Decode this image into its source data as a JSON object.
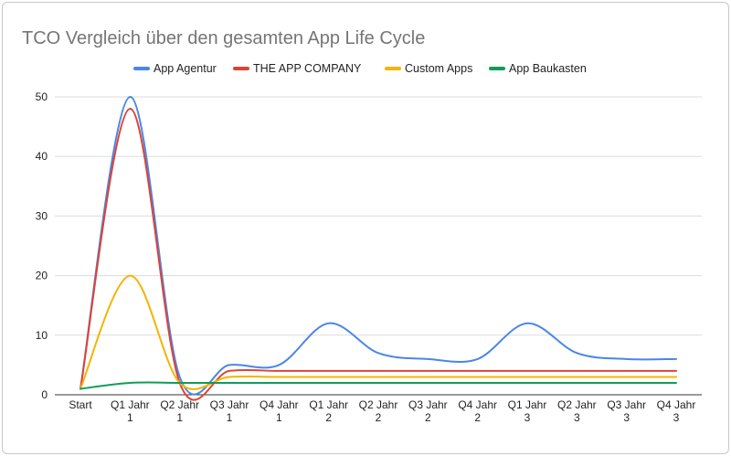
{
  "chart_data": {
    "type": "line",
    "title": "TCO Vergleich über den gesamten App Life Cycle",
    "xlabel": "",
    "ylabel": "",
    "ylim": [
      0,
      50
    ],
    "yticks": [
      0,
      10,
      20,
      30,
      40,
      50
    ],
    "grid": true,
    "smooth": true,
    "legend_position": "top",
    "categories": [
      [
        "Start"
      ],
      [
        "Q1 Jahr",
        "1"
      ],
      [
        "Q2 Jahr",
        "1"
      ],
      [
        "Q3 Jahr",
        "1"
      ],
      [
        "Q4 Jahr",
        "1"
      ],
      [
        "Q1 Jahr",
        "2"
      ],
      [
        "Q2 Jahr",
        "2"
      ],
      [
        "Q3 Jahr",
        "2"
      ],
      [
        "Q4 Jahr",
        "2"
      ],
      [
        "Q1 Jahr",
        "3"
      ],
      [
        "Q2 Jahr",
        "3"
      ],
      [
        "Q3 Jahr",
        "3"
      ],
      [
        "Q4 Jahr",
        "3"
      ]
    ],
    "series": [
      {
        "name": "App Agentur",
        "color": "#4a86e8",
        "values": [
          1,
          50,
          3,
          5,
          5,
          12,
          7,
          6,
          6,
          12,
          7,
          6,
          6
        ]
      },
      {
        "name": "THE APP COMPANY",
        "color": "#db4437",
        "values": [
          1,
          48,
          2,
          4,
          4,
          4,
          4,
          4,
          4,
          4,
          4,
          4,
          4
        ]
      },
      {
        "name": "Custom Apps",
        "color": "#f4b400",
        "values": [
          1,
          20,
          2,
          3,
          3,
          3,
          3,
          3,
          3,
          3,
          3,
          3,
          3
        ]
      },
      {
        "name": "App Baukasten",
        "color": "#0f9d58",
        "values": [
          1,
          2,
          2,
          2,
          2,
          2,
          2,
          2,
          2,
          2,
          2,
          2,
          2
        ]
      }
    ]
  }
}
